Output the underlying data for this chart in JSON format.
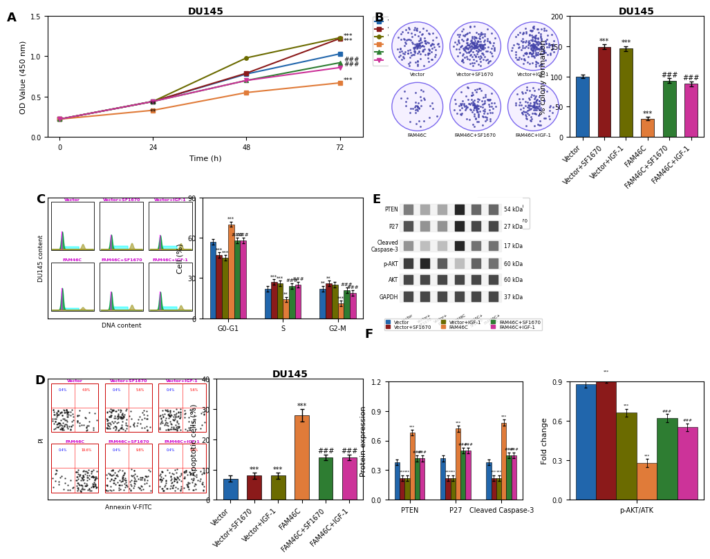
{
  "panel_A": {
    "title": "DU145",
    "xlabel": "Time (h)",
    "ylabel": "OD Value (450 nm)",
    "x": [
      0,
      24,
      48,
      72
    ],
    "series": {
      "Vector": [
        0.22,
        0.44,
        0.78,
        1.03
      ],
      "Vector+SF1670": [
        0.22,
        0.44,
        0.79,
        1.22
      ],
      "Vector+IGF-1": [
        0.22,
        0.44,
        0.98,
        1.23
      ],
      "FAM46C": [
        0.22,
        0.33,
        0.55,
        0.67
      ],
      "FAM46C+SF1670": [
        0.22,
        0.44,
        0.7,
        0.92
      ],
      "FAM46C+IGF-1": [
        0.22,
        0.44,
        0.7,
        0.86
      ]
    },
    "colors": {
      "Vector": "#2166ac",
      "Vector+SF1670": "#8b1a1a",
      "Vector+IGF-1": "#6b6b00",
      "FAM46C": "#e07b39",
      "FAM46C+SF1670": "#2e7d32",
      "FAM46C+IGF-1": "#cc3399"
    },
    "markers": {
      "Vector": "s",
      "Vector+SF1670": "s",
      "Vector+IGF-1": "o",
      "FAM46C": "s",
      "FAM46C+SF1670": "^",
      "FAM46C+IGF-1": "v"
    },
    "ylim": [
      0.0,
      1.5
    ],
    "yticks": [
      0.0,
      0.5,
      1.0,
      1.5
    ]
  },
  "panel_B_bar": {
    "title": "DU145",
    "ylabel": "% colony formation",
    "categories": [
      "Vector",
      "Vector+SF1670",
      "Vector+IGF-1",
      "FAM46C",
      "FAM46C+SF1670",
      "FAM46C+IGF-1"
    ],
    "values": [
      100,
      149,
      146,
      30,
      93,
      88
    ],
    "colors": [
      "#2166ac",
      "#8b1a1a",
      "#6b6b00",
      "#e07b39",
      "#2e7d32",
      "#cc3399"
    ],
    "ylim": [
      0,
      200
    ],
    "yticks": [
      0,
      50,
      100,
      150,
      200
    ],
    "errors": [
      3,
      4,
      4,
      3,
      4,
      4
    ]
  },
  "panel_C_bar": {
    "ylabel": "Cell (%)",
    "groups": [
      "G0-G1",
      "S",
      "G2-M"
    ],
    "series": {
      "Vector": [
        57,
        22,
        22
      ],
      "Vector+SF1670": [
        47,
        27,
        26
      ],
      "Vector+IGF-1": [
        45,
        26,
        25
      ],
      "FAM46C": [
        70,
        14,
        11
      ],
      "FAM46C+SF1670": [
        58,
        24,
        21
      ],
      "FAM46C+IGF-1": [
        58,
        25,
        19
      ]
    },
    "colors": {
      "Vector": "#2166ac",
      "Vector+SF1670": "#8b1a1a",
      "Vector+IGF-1": "#6b6b00",
      "FAM46C": "#e07b39",
      "FAM46C+SF1670": "#2e7d32",
      "FAM46C+IGF-1": "#cc3399"
    },
    "ylim": [
      0,
      90
    ],
    "yticks": [
      0,
      30,
      60,
      90
    ],
    "error_val": 2
  },
  "panel_D_bar": {
    "title": "DU145",
    "ylabel": "Apoptotic cells (%)",
    "categories": [
      "Vector",
      "Vector+SF1670",
      "Vector+IGF-1",
      "FAM46C",
      "FAM46C+SF1670",
      "FAM46C+IGF-1"
    ],
    "values": [
      7,
      8,
      8,
      28,
      14,
      14
    ],
    "colors": [
      "#2166ac",
      "#8b1a1a",
      "#6b6b00",
      "#e07b39",
      "#2e7d32",
      "#cc3399"
    ],
    "ylim": [
      0,
      40
    ],
    "yticks": [
      0,
      10,
      20,
      30,
      40
    ],
    "errors": [
      1,
      1,
      1,
      2,
      1,
      1
    ]
  },
  "panel_F_left": {
    "ylabel": "Protein expression",
    "groups": [
      "PTEN",
      "P27",
      "Cleaved Caspase-3"
    ],
    "series": {
      "Vector": [
        0.38,
        0.42,
        0.38
      ],
      "Vector+SF1670": [
        0.22,
        0.22,
        0.22
      ],
      "Vector+IGF-1": [
        0.22,
        0.22,
        0.22
      ],
      "FAM46C": [
        0.68,
        0.72,
        0.78
      ],
      "FAM46C+SF1670": [
        0.42,
        0.5,
        0.45
      ],
      "FAM46C+IGF-1": [
        0.42,
        0.5,
        0.45
      ]
    },
    "colors": {
      "Vector": "#2166ac",
      "Vector+SF1670": "#8b1a1a",
      "Vector+IGF-1": "#6b6b00",
      "FAM46C": "#e07b39",
      "FAM46C+SF1670": "#2e7d32",
      "FAM46C+IGF-1": "#cc3399"
    },
    "ylim": [
      0,
      1.2
    ],
    "yticks": [
      0.0,
      0.3,
      0.6,
      0.9,
      1.2
    ],
    "error_val": 0.03
  },
  "panel_F_right": {
    "ylabel": "Fold change",
    "xlabel": "p-AKT/ATK",
    "series": {
      "Vector": 0.88,
      "Vector+SF1670": 0.92,
      "Vector+IGF-1": 0.66,
      "FAM46C": 0.28,
      "FAM46C+SF1670": 0.62,
      "FAM46C+IGF-1": 0.55
    },
    "colors": {
      "Vector": "#2166ac",
      "Vector+SF1670": "#8b1a1a",
      "Vector+IGF-1": "#6b6b00",
      "FAM46C": "#e07b39",
      "FAM46C+SF1670": "#2e7d32",
      "FAM46C+IGF-1": "#cc3399"
    },
    "ylim": [
      0,
      0.9
    ],
    "yticks": [
      0.0,
      0.3,
      0.6,
      0.9
    ],
    "error_val": 0.03
  },
  "series_names": [
    "Vector",
    "Vector+SF1670",
    "Vector+IGF-1",
    "FAM46C",
    "FAM46C+SF1670",
    "FAM46C+IGF-1"
  ],
  "series_colors": [
    "#2166ac",
    "#8b1a1a",
    "#6b6b00",
    "#e07b39",
    "#2e7d32",
    "#cc3399"
  ],
  "background_color": "#ffffff",
  "label_fontsize": 13,
  "tick_fontsize": 7,
  "axis_label_fontsize": 8,
  "title_fontsize": 10
}
